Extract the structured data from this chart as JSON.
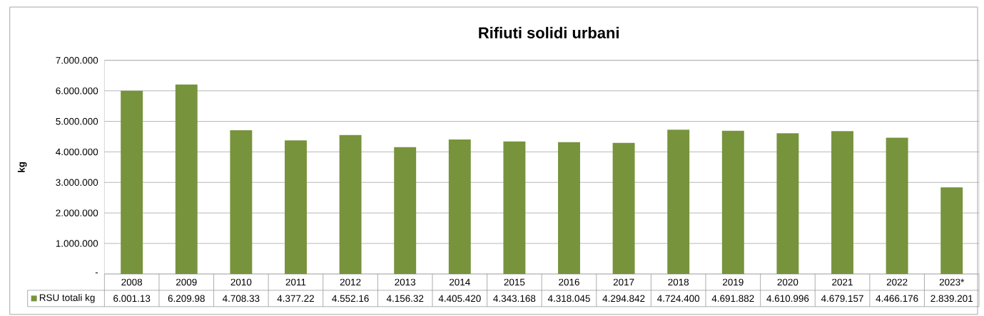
{
  "chart_data": {
    "type": "bar",
    "title": "Rifiuti solidi urbani",
    "ylabel": "kg",
    "categories": [
      "2008",
      "2009",
      "2010",
      "2011",
      "2012",
      "2013",
      "2014",
      "2015",
      "2016",
      "2017",
      "2018",
      "2019",
      "2020",
      "2021",
      "2022",
      "2023*"
    ],
    "series": [
      {
        "name": "RSU totali kg",
        "color": "#77933c",
        "values": [
          6001130,
          6209980,
          4708330,
          4377220,
          4552160,
          4156320,
          4405420,
          4343168,
          4318045,
          4294842,
          4724400,
          4691882,
          4610996,
          4679157,
          4466176,
          2839201
        ]
      }
    ],
    "value_labels": [
      "6.001.13",
      "6.209.98",
      "4.708.33",
      "4.377.22",
      "4.552.16",
      "4.156.32",
      "4.405.420",
      "4.343.168",
      "4.318.045",
      "4.294.842",
      "4.724.400",
      "4.691.882",
      "4.610.996",
      "4.679.157",
      "4.466.176",
      "2.839.201"
    ],
    "ylim": [
      0,
      7000000
    ],
    "yticks": [
      {
        "value": 0,
        "label": "-"
      },
      {
        "value": 1000000,
        "label": "1.000.000"
      },
      {
        "value": 2000000,
        "label": "2.000.000"
      },
      {
        "value": 3000000,
        "label": "3.000.000"
      },
      {
        "value": 4000000,
        "label": "4.000.000"
      },
      {
        "value": 5000000,
        "label": "5.000.000"
      },
      {
        "value": 6000000,
        "label": "6.000.000"
      },
      {
        "value": 7000000,
        "label": "7.000.000"
      }
    ],
    "grid": "y",
    "legend": "bottom"
  }
}
